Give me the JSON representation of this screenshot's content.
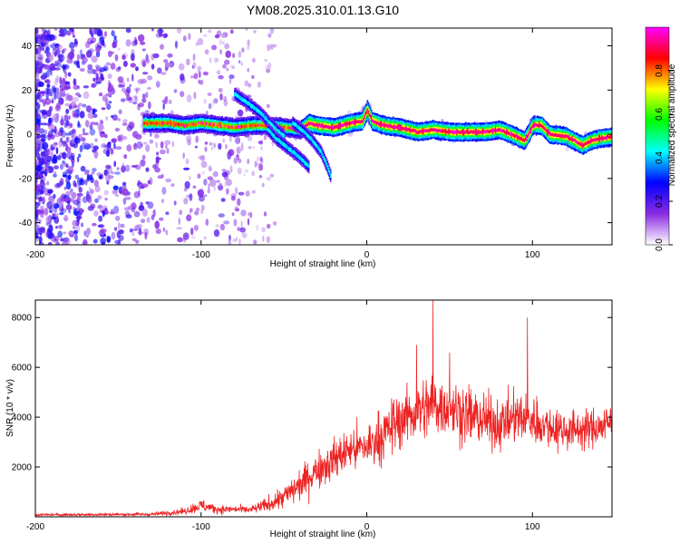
{
  "title": "YM08.2025.310.01.13.G10",
  "chart_data": [
    {
      "type": "heatmap",
      "name": "spectrogram",
      "xlabel": "Height of straight line (km)",
      "ylabel": "Frequency (Hz)",
      "xlim": [
        -200,
        148
      ],
      "ylim": [
        -50,
        48
      ],
      "xticks": [
        -200,
        -100,
        0,
        100
      ],
      "yticks": [
        -40,
        -20,
        0,
        20,
        40
      ],
      "xtick_labels": [
        "-200",
        "-100",
        "0",
        "100"
      ],
      "ytick_labels": [
        "-40",
        "-20",
        "0",
        "20",
        "40"
      ],
      "ridge": {
        "x": [
          -135,
          -120,
          -110,
          -100,
          -90,
          -80,
          -70,
          -60,
          -50,
          -40,
          -35,
          -30,
          -20,
          -10,
          -3,
          0,
          3,
          10,
          20,
          30,
          40,
          50,
          60,
          70,
          80,
          90,
          95,
          100,
          105,
          110,
          120,
          125,
          130,
          135,
          140,
          148
        ],
        "y": [
          5,
          5,
          4,
          5,
          4,
          3,
          4,
          4,
          3,
          2,
          5,
          4,
          3,
          5,
          6,
          11,
          6,
          4,
          3,
          1,
          2,
          1,
          1,
          1,
          2,
          -1,
          -3,
          4,
          4,
          0,
          -1,
          -3,
          -5,
          -3,
          -2,
          -1
        ]
      },
      "branches": [
        {
          "x": [
            -80,
            -72,
            -65,
            -60,
            -55,
            -50
          ],
          "y": [
            18,
            14,
            10,
            6,
            2,
            -1
          ]
        },
        {
          "x": [
            -60,
            -55,
            -50,
            -45,
            -40,
            -35
          ],
          "y": [
            2,
            -2,
            -5,
            -8,
            -11,
            -15
          ]
        },
        {
          "x": [
            -45,
            -38,
            -33,
            -28,
            -25,
            -22
          ],
          "y": [
            5,
            1,
            -3,
            -8,
            -13,
            -19
          ]
        }
      ],
      "colorbar": {
        "label": "Normalized spectral amplitude",
        "ticks": [
          0.0,
          0.2,
          0.4,
          0.6,
          0.8
        ],
        "tick_labels": [
          "0.0",
          "0.2",
          "0.4",
          "0.6",
          "0.8"
        ],
        "range": [
          0,
          1
        ],
        "stops": [
          "#ffffff",
          "#8a2be2",
          "#0000ff",
          "#00ffff",
          "#00ff00",
          "#ffff00",
          "#ff0000",
          "#ff00ff"
        ]
      }
    },
    {
      "type": "line",
      "name": "snr",
      "xlabel": "Height of straight line (km)",
      "ylabel": "SNR (10 * v/v)",
      "xlim": [
        -200,
        148
      ],
      "ylim": [
        0,
        8700
      ],
      "xticks": [
        -200,
        -100,
        0,
        100
      ],
      "yticks": [
        2000,
        4000,
        6000,
        8000
      ],
      "xtick_labels": [
        "-200",
        "-100",
        "0",
        "100"
      ],
      "ytick_labels": [
        "2000",
        "4000",
        "6000",
        "8000"
      ],
      "color": "#ee2222",
      "envelope": {
        "x": [
          -200,
          -130,
          -120,
          -110,
          -100,
          -90,
          -80,
          -70,
          -60,
          -50,
          -40,
          -30,
          -20,
          -10,
          0,
          10,
          20,
          30,
          40,
          50,
          60,
          70,
          80,
          90,
          100,
          110,
          120,
          130,
          140,
          148
        ],
        "mean": [
          80,
          100,
          160,
          220,
          450,
          300,
          300,
          280,
          480,
          800,
          1300,
          1900,
          2300,
          2700,
          2800,
          3300,
          3900,
          4200,
          4500,
          4400,
          4100,
          3900,
          3700,
          4000,
          3900,
          3600,
          3500,
          3500,
          3600,
          3800
        ],
        "spread": [
          90,
          110,
          170,
          220,
          450,
          300,
          260,
          260,
          500,
          800,
          1100,
          1300,
          1400,
          1500,
          1600,
          1800,
          2000,
          2100,
          2200,
          2100,
          2000,
          1900,
          1700,
          1800,
          1700,
          1500,
          1400,
          1300,
          1300,
          1400
        ]
      },
      "peaks": [
        {
          "x": 40,
          "y": 8700
        },
        {
          "x": 97,
          "y": 8000
        },
        {
          "x": 30,
          "y": 6900
        },
        {
          "x": 50,
          "y": 6600
        }
      ]
    }
  ]
}
